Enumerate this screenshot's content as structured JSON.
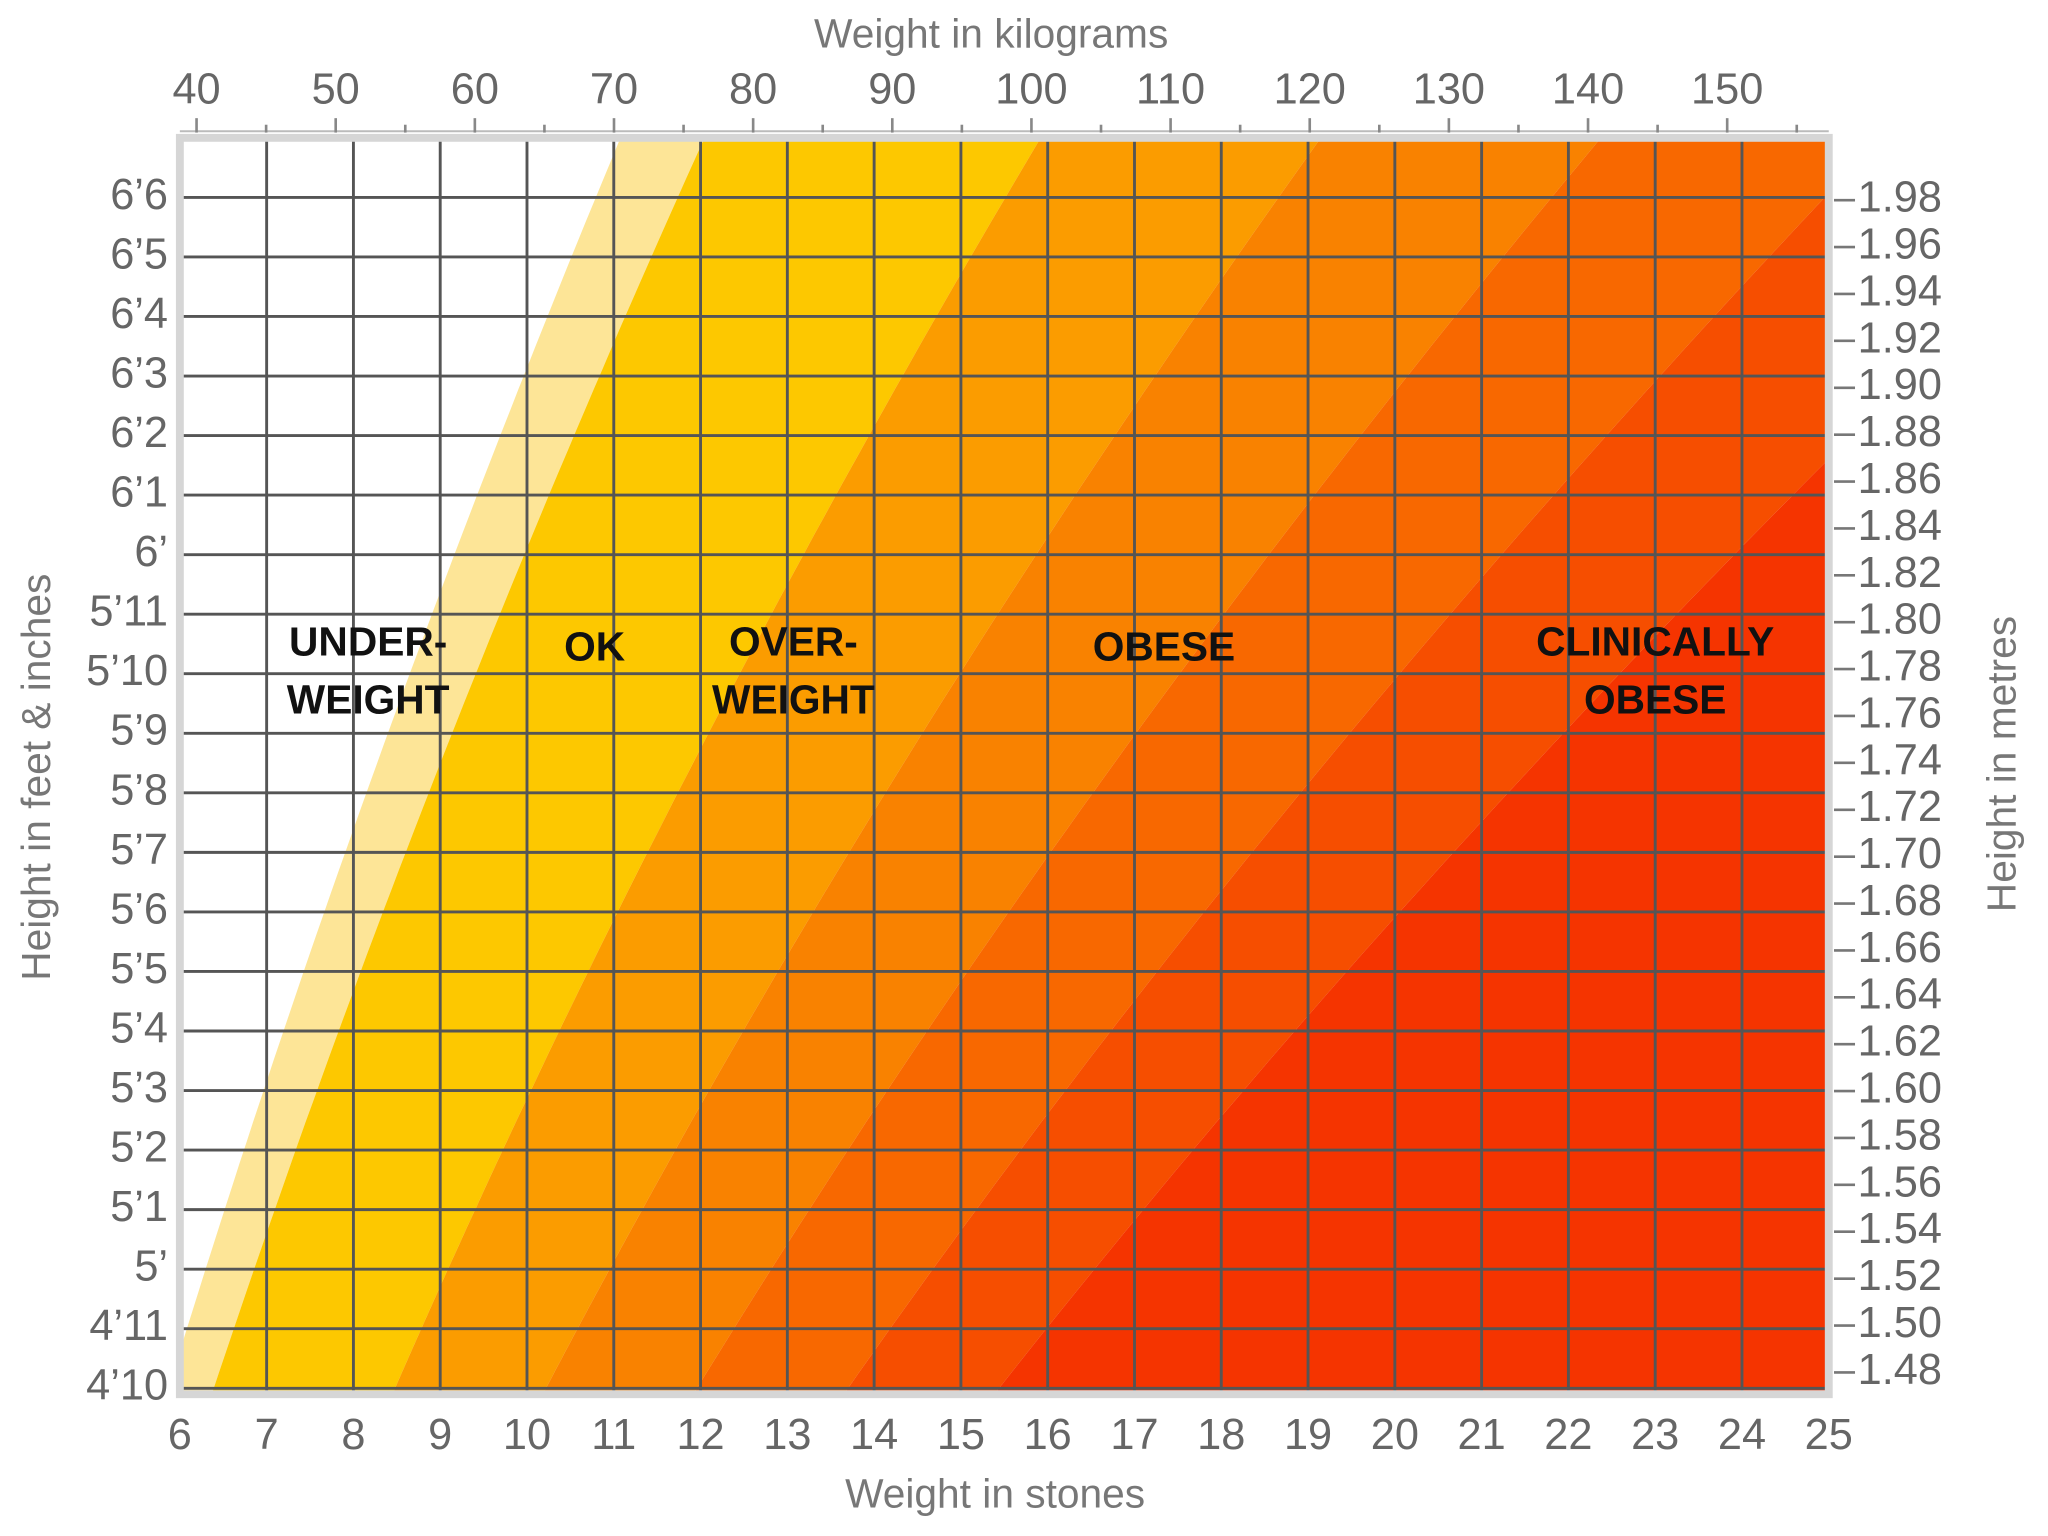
{
  "chart_data": {
    "type": "bmi-bands",
    "xlabel": "Weight in stones",
    "x2label": "Weight in kilograms",
    "ylabel": "Height in feet & inches",
    "y2label": "Height in metres",
    "xlim": [
      6,
      25
    ],
    "xticks": [
      6,
      7,
      8,
      9,
      10,
      11,
      12,
      13,
      14,
      15,
      16,
      17,
      18,
      19,
      20,
      21,
      22,
      23,
      24,
      25
    ],
    "x2lim": [
      38.8,
      157.3
    ],
    "x2ticks": [
      40,
      50,
      60,
      70,
      80,
      90,
      100,
      110,
      120,
      130,
      140,
      150
    ],
    "x2minorticks": [
      45,
      55,
      65,
      75,
      85,
      95,
      105,
      115,
      125,
      135,
      145,
      155
    ],
    "ylim": [
      57.9,
      79
    ],
    "yticks": [
      {
        "value": 58,
        "label": "4’10"
      },
      {
        "value": 59,
        "label": "4’11"
      },
      {
        "value": 60,
        "label": "5’"
      },
      {
        "value": 61,
        "label": "5’1"
      },
      {
        "value": 62,
        "label": "5’2"
      },
      {
        "value": 63,
        "label": "5’3"
      },
      {
        "value": 64,
        "label": "5’4"
      },
      {
        "value": 65,
        "label": "5’5"
      },
      {
        "value": 66,
        "label": "5’6"
      },
      {
        "value": 67,
        "label": "5’7"
      },
      {
        "value": 68,
        "label": "5’8"
      },
      {
        "value": 69,
        "label": "5’9"
      },
      {
        "value": 70,
        "label": "5’10"
      },
      {
        "value": 71,
        "label": "5’11"
      },
      {
        "value": 72,
        "label": "6’"
      },
      {
        "value": 73,
        "label": "6’1"
      },
      {
        "value": 74,
        "label": "6’2"
      },
      {
        "value": 75,
        "label": "6’3"
      },
      {
        "value": 76,
        "label": "6’4"
      },
      {
        "value": 77,
        "label": "6’5"
      },
      {
        "value": 78,
        "label": "6’6"
      }
    ],
    "y2lim": [
      1.4707,
      2.0066
    ],
    "y2ticks": [
      1.98,
      1.94,
      1.96,
      1.92,
      {
        "value": 1.9,
        "label": "1.90"
      },
      1.88,
      1.86,
      1.84,
      1.82,
      {
        "value": 1.8,
        "label": "1.80"
      },
      1.78,
      1.76,
      1.74,
      1.72,
      {
        "value": 1.7,
        "label": "1.70"
      },
      1.68,
      1.66,
      1.64,
      1.62,
      {
        "value": 1.6,
        "label": "1.60"
      },
      1.58,
      1.56,
      1.54,
      1.52,
      {
        "value": 1.5,
        "label": "1.50"
      },
      1.48
    ],
    "grid": true,
    "bands": [
      {
        "bmi": 0,
        "color": "#ffffff"
      },
      {
        "bmi": 17.5,
        "color": "#fde597"
      },
      {
        "bmi": 19,
        "color": "#fdc800"
      },
      {
        "bmi": 25,
        "color": "#fb9c00"
      },
      {
        "bmi": 30,
        "color": "#f98200"
      },
      {
        "bmi": 35,
        "color": "#f86800"
      },
      {
        "bmi": 40,
        "color": "#f64e00"
      },
      {
        "bmi": 45,
        "color": "#f53400"
      }
    ],
    "annotations": [
      {
        "lines": [
          "UNDER-",
          "WEIGHT"
        ],
        "x": 8.17,
        "y": 70
      },
      {
        "lines": [
          "OK"
        ],
        "x": 10.78,
        "y": 70.4
      },
      {
        "lines": [
          "OVER-",
          "WEIGHT"
        ],
        "x": 13.07,
        "y": 70
      },
      {
        "lines": [
          "OBESE"
        ],
        "x": 17.34,
        "y": 70.4
      },
      {
        "lines": [
          "CLINICALLY",
          "OBESE"
        ],
        "x": 23.0,
        "y": 70
      }
    ]
  }
}
